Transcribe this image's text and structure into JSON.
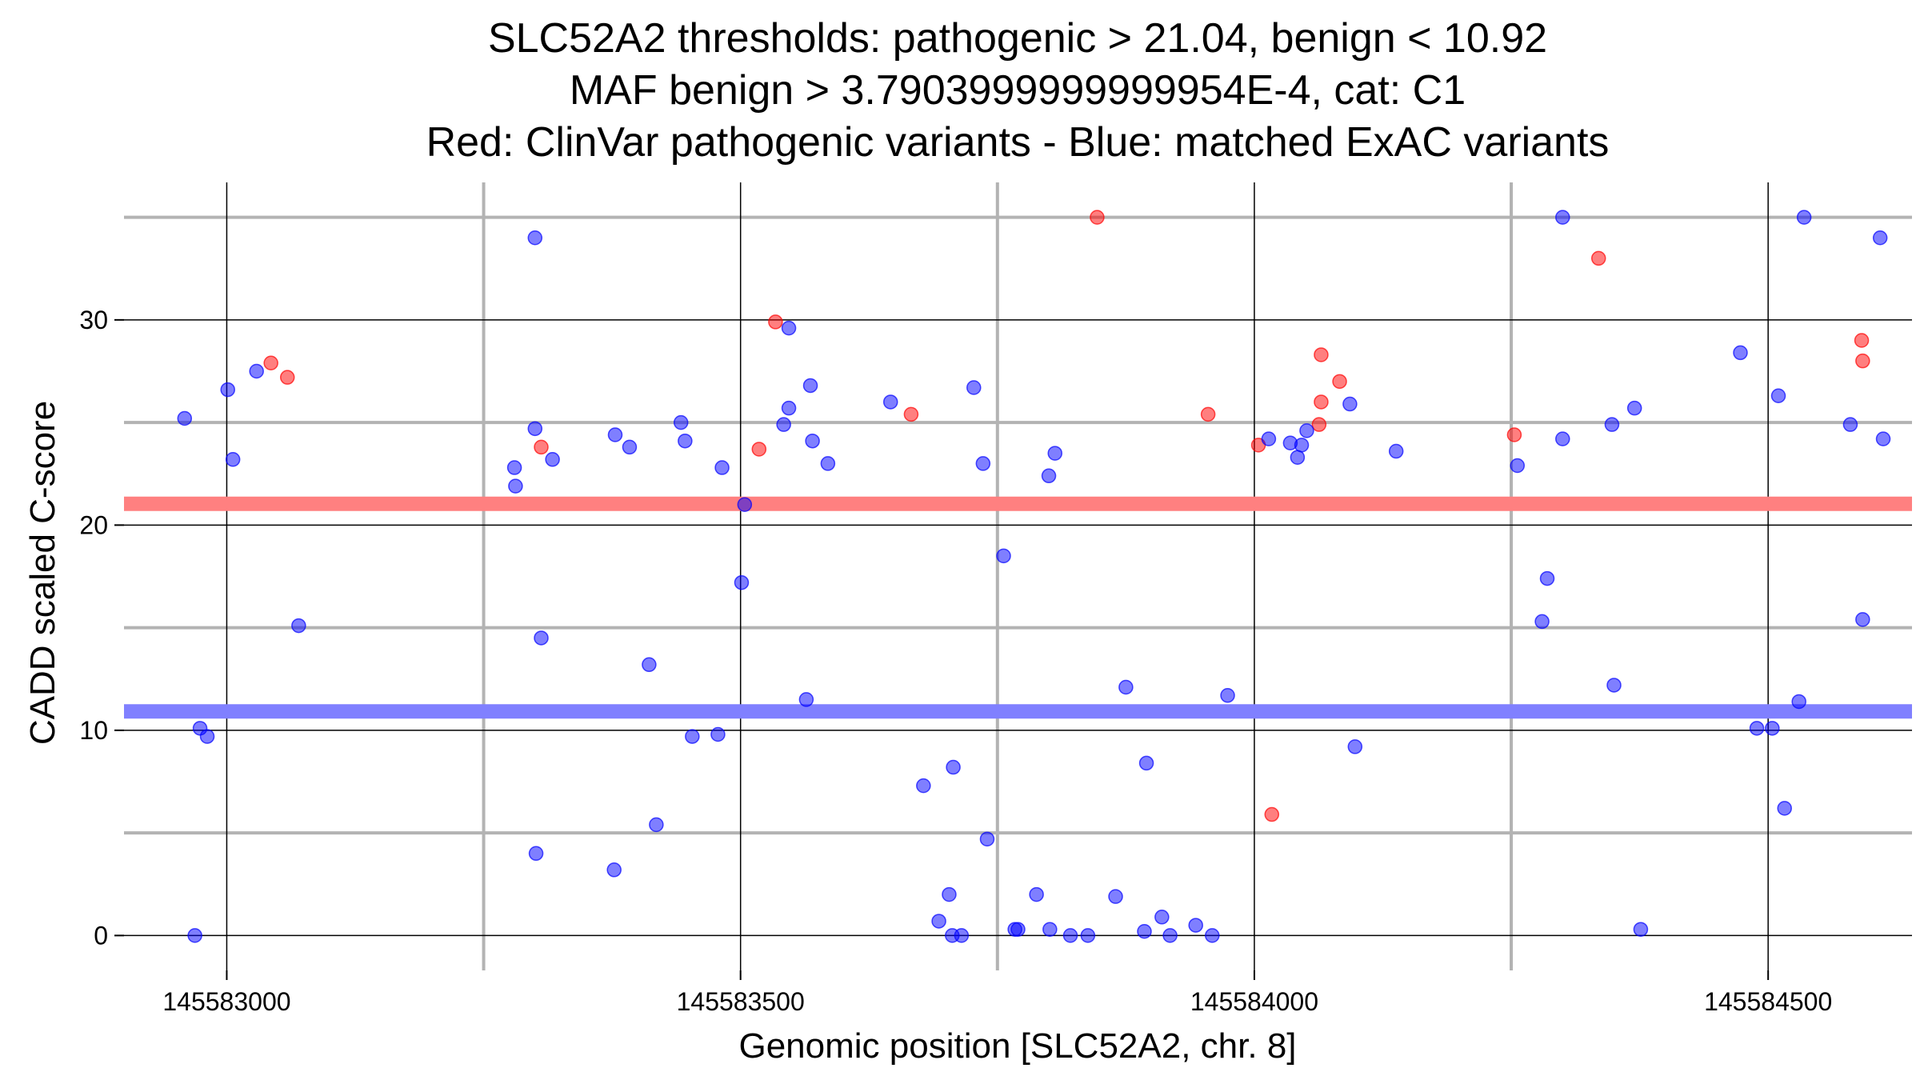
{
  "chart_data": {
    "type": "scatter",
    "title_lines": [
      "SLC52A2 thresholds: pathogenic > 21.04, benign < 10.92",
      "MAF benign > 3.7903999999999954E-4, cat: C1",
      "Red: ClinVar pathogenic variants - Blue: matched ExAC variants"
    ],
    "xlabel": "Genomic position [SLC52A2, chr. 8]",
    "ylabel": "CADD scaled C-score",
    "xlim": [
      145582900,
      145584640
    ],
    "ylim": [
      -1.7,
      36.7
    ],
    "x_ticks": [
      145583000,
      145583500,
      145584000,
      145584500
    ],
    "x_tick_labels": [
      "145583000",
      "145583500",
      "145584000",
      "145584500"
    ],
    "x_minor_grid": [
      145583250,
      145583750,
      145584250
    ],
    "y_ticks": [
      0,
      10,
      20,
      30
    ],
    "y_tick_labels": [
      "0",
      "10",
      "20",
      "30"
    ],
    "y_minor_grid": [
      5,
      15,
      25,
      35
    ],
    "grid": true,
    "thresholds": [
      {
        "name": "pathogenic",
        "value": 21.04,
        "color": "#ff8080"
      },
      {
        "name": "benign",
        "value": 10.92,
        "color": "#8080ff"
      }
    ],
    "series": [
      {
        "color": "#ff0000",
        "points": [
          [
            145583043,
            27.9
          ],
          [
            145583059,
            27.2
          ],
          [
            145583306,
            23.8
          ],
          [
            145583518,
            23.7
          ],
          [
            145583534,
            29.9
          ],
          [
            145583666,
            25.4
          ],
          [
            145583847,
            35.0
          ],
          [
            145583955,
            25.4
          ],
          [
            145584004,
            23.9
          ],
          [
            145584017,
            5.9
          ],
          [
            145584063,
            24.9
          ],
          [
            145584065,
            26.0
          ],
          [
            145584065,
            28.3
          ],
          [
            145584083,
            27.0
          ],
          [
            145584253,
            24.4
          ],
          [
            145584335,
            33.0
          ],
          [
            145584591,
            29.0
          ],
          [
            145584592,
            28.0
          ]
        ]
      },
      {
        "color": "#0000ff",
        "points": [
          [
            145582959,
            25.2
          ],
          [
            145582969,
            0.0
          ],
          [
            145582974,
            10.1
          ],
          [
            145582981,
            9.7
          ],
          [
            145583001,
            26.6
          ],
          [
            145583006,
            23.2
          ],
          [
            145583029,
            27.5
          ],
          [
            145583070,
            15.1
          ],
          [
            145583280,
            22.8
          ],
          [
            145583281,
            21.9
          ],
          [
            145583300,
            24.7
          ],
          [
            145583300,
            34.0
          ],
          [
            145583301,
            4.0
          ],
          [
            145583306,
            14.5
          ],
          [
            145583317,
            23.2
          ],
          [
            145583378,
            24.4
          ],
          [
            145583377,
            3.2
          ],
          [
            145583392,
            23.8
          ],
          [
            145583411,
            13.2
          ],
          [
            145583418,
            5.4
          ],
          [
            145583442,
            25.0
          ],
          [
            145583446,
            24.1
          ],
          [
            145583453,
            9.7
          ],
          [
            145583478,
            9.8
          ],
          [
            145583482,
            22.8
          ],
          [
            145583501,
            17.2
          ],
          [
            145583504,
            21.0
          ],
          [
            145583542,
            24.9
          ],
          [
            145583547,
            25.7
          ],
          [
            145583547,
            29.6
          ],
          [
            145583564,
            11.5
          ],
          [
            145583568,
            26.8
          ],
          [
            145583570,
            24.1
          ],
          [
            145583585,
            23.0
          ],
          [
            145583646,
            26.0
          ],
          [
            145583678,
            7.3
          ],
          [
            145583693,
            0.7
          ],
          [
            145583703,
            2.0
          ],
          [
            145583707,
            8.2
          ],
          [
            145583706,
            0.0
          ],
          [
            145583715,
            0.0
          ],
          [
            145583727,
            26.7
          ],
          [
            145583736,
            23.0
          ],
          [
            145583740,
            4.7
          ],
          [
            145583756,
            18.5
          ],
          [
            145583767,
            0.3
          ],
          [
            145583770,
            0.3
          ],
          [
            145583788,
            2.0
          ],
          [
            145583800,
            22.4
          ],
          [
            145583801,
            0.3
          ],
          [
            145583806,
            23.5
          ],
          [
            145583821,
            0.0
          ],
          [
            145583838,
            0.0
          ],
          [
            145583865,
            1.9
          ],
          [
            145583875,
            12.1
          ],
          [
            145583893,
            0.2
          ],
          [
            145583895,
            8.4
          ],
          [
            145583910,
            0.9
          ],
          [
            145583918,
            0.0
          ],
          [
            145583943,
            0.5
          ],
          [
            145583959,
            0.0
          ],
          [
            145583974,
            11.7
          ],
          [
            145584014,
            24.2
          ],
          [
            145584035,
            24.0
          ],
          [
            145584042,
            23.3
          ],
          [
            145584046,
            23.9
          ],
          [
            145584051,
            24.6
          ],
          [
            145584093,
            25.9
          ],
          [
            145584098,
            9.2
          ],
          [
            145584138,
            23.6
          ],
          [
            145584256,
            22.9
          ],
          [
            145584280,
            15.3
          ],
          [
            145584285,
            17.4
          ],
          [
            145584300,
            24.2
          ],
          [
            145584300,
            35.0
          ],
          [
            145584348,
            24.9
          ],
          [
            145584350,
            12.2
          ],
          [
            145584370,
            25.7
          ],
          [
            145584376,
            0.3
          ],
          [
            145584473,
            28.4
          ],
          [
            145584489,
            10.1
          ],
          [
            145584504,
            10.1
          ],
          [
            145584510,
            26.3
          ],
          [
            145584516,
            6.2
          ],
          [
            145584530,
            11.4
          ],
          [
            145584535,
            35.0
          ],
          [
            145584580,
            24.9
          ],
          [
            145584592,
            15.4
          ],
          [
            145584609,
            34.0
          ],
          [
            145584612,
            24.2
          ]
        ]
      }
    ]
  }
}
